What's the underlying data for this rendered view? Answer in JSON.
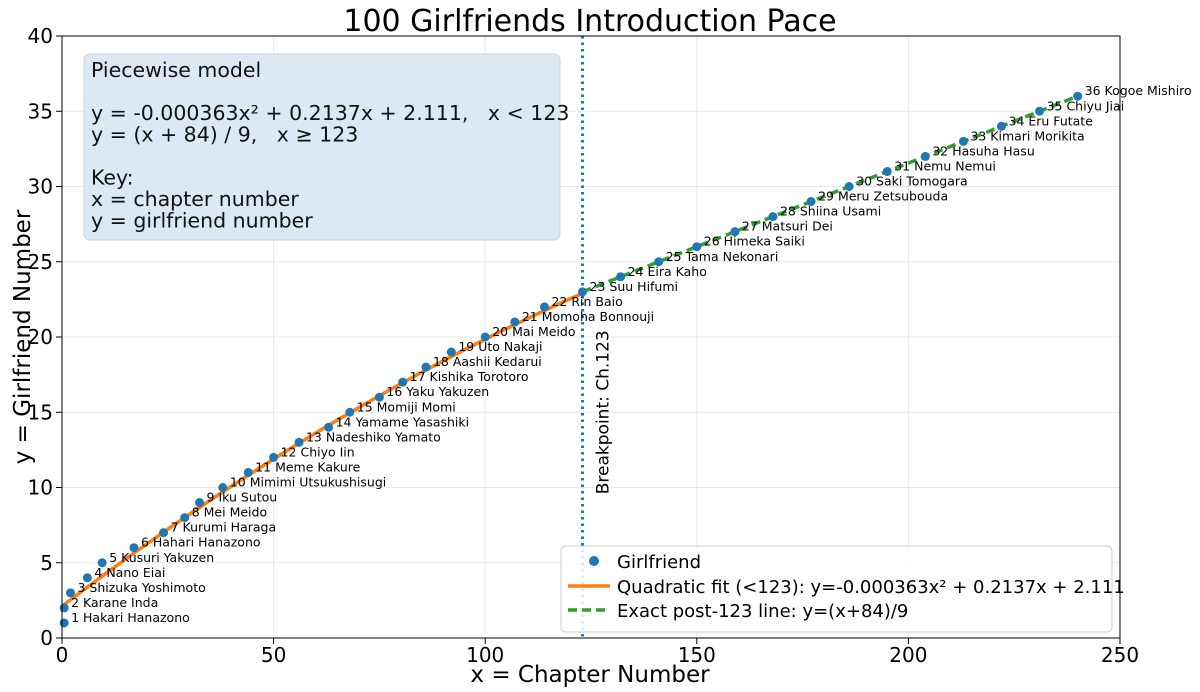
{
  "chart_data": {
    "type": "scatter",
    "title": "100 Girlfriends Introduction Pace",
    "xlabel": "x = Chapter Number",
    "ylabel": "y = Girlfriend Number",
    "xlim": [
      0,
      250
    ],
    "ylim": [
      0,
      40
    ],
    "xticks": [
      0,
      50,
      100,
      150,
      200,
      250
    ],
    "yticks": [
      0,
      5,
      10,
      15,
      20,
      25,
      30,
      35,
      40
    ],
    "grid": true,
    "legend_position": "bottom-right",
    "colors": {
      "points": "#1f77b4",
      "quadratic": "#ff7f0e",
      "exact_line": "#2ca02c",
      "breakpoint": "#1f77b4",
      "box": "#dce9f4"
    },
    "breakpoint": {
      "x": 123,
      "label": "Breakpoint: Ch.123"
    },
    "model_box": {
      "lines": [
        "Piecewise model",
        "",
        "y = -0.000363x² + 0.2137x + 2.111,   x < 123",
        "y = (x + 84) / 9,   x ≥ 123",
        "",
        "Key:",
        "x = chapter number",
        "y = girlfriend number"
      ]
    },
    "legend": [
      {
        "key": "points",
        "label": "Girlfriend"
      },
      {
        "key": "quadratic",
        "label": "Quadratic fit (<123): y=-0.000363x² + 0.2137x + 2.111"
      },
      {
        "key": "exact",
        "label": "Exact post-123 line: y=(x+84)/9"
      }
    ],
    "quadratic": {
      "a": -0.000363,
      "b": 0.2137,
      "c": 2.111,
      "x_range": [
        0,
        123
      ]
    },
    "exact_line": {
      "x_range": [
        123,
        240
      ]
    },
    "points": [
      {
        "x": 0.5,
        "y": 1,
        "label": "1 Hakari Hanazono"
      },
      {
        "x": 0.5,
        "y": 2,
        "label": "2 Karane Inda"
      },
      {
        "x": 2,
        "y": 3,
        "label": "3 Shizuka Yoshimoto"
      },
      {
        "x": 6,
        "y": 4,
        "label": "4 Nano Eiai"
      },
      {
        "x": 9.5,
        "y": 5,
        "label": "5 Kusuri Yakuzen"
      },
      {
        "x": 17,
        "y": 6,
        "label": "6 Hahari Hanazono"
      },
      {
        "x": 24,
        "y": 7,
        "label": "7 Kurumi Haraga"
      },
      {
        "x": 29,
        "y": 8,
        "label": "8 Mei Meido"
      },
      {
        "x": 32.5,
        "y": 9,
        "label": "9 Iku Sutou"
      },
      {
        "x": 38,
        "y": 10,
        "label": "10 Mimimi Utsukushisugi"
      },
      {
        "x": 44,
        "y": 11,
        "label": "11 Meme Kakure"
      },
      {
        "x": 50,
        "y": 12,
        "label": "12 Chiyo Iin"
      },
      {
        "x": 56,
        "y": 13,
        "label": "13 Nadeshiko Yamato"
      },
      {
        "x": 63,
        "y": 14,
        "label": "14 Yamame Yasashiki"
      },
      {
        "x": 68,
        "y": 15,
        "label": "15 Momiji Momi"
      },
      {
        "x": 75,
        "y": 16,
        "label": "16 Yaku Yakuzen"
      },
      {
        "x": 80.5,
        "y": 17,
        "label": "17 Kishika Torotoro"
      },
      {
        "x": 86,
        "y": 18,
        "label": "18 Aashii Kedarui"
      },
      {
        "x": 92,
        "y": 19,
        "label": "19 Uto Nakaji"
      },
      {
        "x": 100,
        "y": 20,
        "label": "20 Mai Meido"
      },
      {
        "x": 107,
        "y": 21,
        "label": "21 Momoha Bonnouji"
      },
      {
        "x": 114,
        "y": 22,
        "label": "22 Rin Baio"
      },
      {
        "x": 123,
        "y": 23,
        "label": "23 Suu Hifumi"
      },
      {
        "x": 132,
        "y": 24,
        "label": "24 Eira Kaho"
      },
      {
        "x": 141,
        "y": 25,
        "label": "25 Tama Nekonari"
      },
      {
        "x": 150,
        "y": 26,
        "label": "26 Himeka Saiki"
      },
      {
        "x": 159,
        "y": 27,
        "label": "27 Matsuri Dei"
      },
      {
        "x": 168,
        "y": 28,
        "label": "28 Shiina Usami"
      },
      {
        "x": 177,
        "y": 29,
        "label": "29 Meru Zetsubouda"
      },
      {
        "x": 186,
        "y": 30,
        "label": "30 Saki Tomogara"
      },
      {
        "x": 195,
        "y": 31,
        "label": "31 Nemu Nemui"
      },
      {
        "x": 204,
        "y": 32,
        "label": "32 Hasuha Hasu"
      },
      {
        "x": 213,
        "y": 33,
        "label": "33 Kimari Morikita"
      },
      {
        "x": 222,
        "y": 34,
        "label": "34 Eru Futate"
      },
      {
        "x": 231,
        "y": 35,
        "label": "35 Chiyu Jiai"
      },
      {
        "x": 240,
        "y": 36,
        "label": "36 Kogoe Mishiro"
      }
    ]
  }
}
